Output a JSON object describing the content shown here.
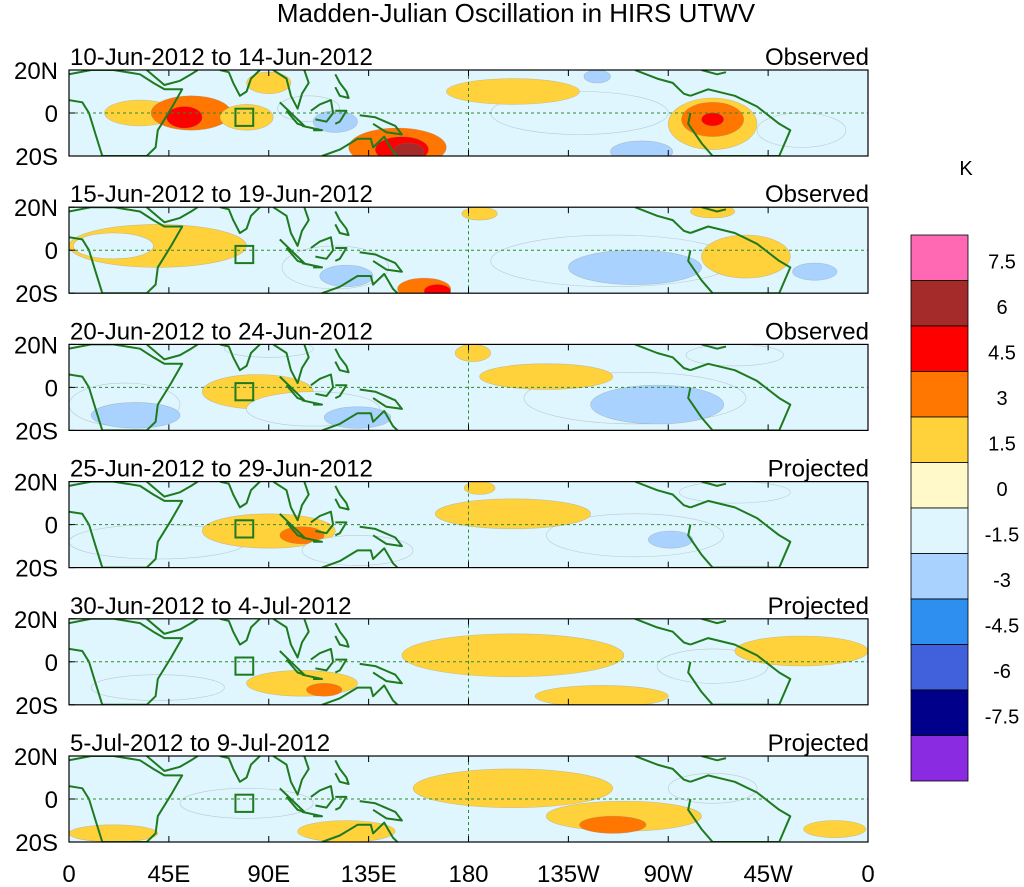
{
  "chart_data": {
    "type": "heatmap",
    "title": "Madden-Julian Oscillation in HIRS UTWV",
    "xlabel": "",
    "ylabel": "",
    "x_ticks": [
      "0",
      "45E",
      "90E",
      "135E",
      "180",
      "135W",
      "90W",
      "45W",
      "0"
    ],
    "x_tick_values": [
      0,
      45,
      90,
      135,
      180,
      225,
      270,
      315,
      360
    ],
    "y_ticks": [
      "20N",
      "0",
      "20S"
    ],
    "y_tick_values": [
      20,
      0,
      -20
    ],
    "xlim": [
      0,
      360
    ],
    "ylim": [
      -20,
      20
    ],
    "colorbar": {
      "unit": "K",
      "levels": [
        "7.5",
        "6",
        "4.5",
        "3",
        "1.5",
        "0",
        "-1.5",
        "-3",
        "-4.5",
        "-6",
        "-7.5"
      ],
      "level_values": [
        7.5,
        6,
        4.5,
        3,
        1.5,
        0,
        -1.5,
        -3,
        -4.5,
        -6,
        -7.5
      ],
      "colors": [
        "#ff69b4",
        "#a52a2a",
        "#ff0000",
        "#ff7700",
        "#ffd23c",
        "#fff8c8",
        "#dff6ff",
        "#aad2ff",
        "#2e8ff0",
        "#4060dc",
        "#00008b",
        "#8a2be2"
      ]
    },
    "panels": [
      {
        "period": "10-Jun-2012 to 14-Jun-2012",
        "status": "Observed",
        "anomalies": [
          {
            "lon": 32,
            "lat": 0,
            "rlon": 16,
            "rlat": 6,
            "value": 1.5
          },
          {
            "lon": 55,
            "lat": 0,
            "rlon": 18,
            "rlat": 8,
            "value": 3
          },
          {
            "lon": 52,
            "lat": -2,
            "rlon": 8,
            "rlat": 5,
            "value": 4.5
          },
          {
            "lon": 80,
            "lat": -2,
            "rlon": 12,
            "rlat": 6,
            "value": 1.5
          },
          {
            "lon": 108,
            "lat": 2,
            "rlon": 14,
            "rlat": 6,
            "value": -1.5
          },
          {
            "lon": 120,
            "lat": -4,
            "rlon": 10,
            "rlat": 5,
            "value": -3
          },
          {
            "lon": 148,
            "lat": -16,
            "rlon": 22,
            "rlat": 9,
            "value": 3
          },
          {
            "lon": 150,
            "lat": -17,
            "rlon": 12,
            "rlat": 6,
            "value": 4.5
          },
          {
            "lon": 153,
            "lat": -18,
            "rlon": 7,
            "rlat": 4,
            "value": 6
          },
          {
            "lon": 90,
            "lat": 14,
            "rlon": 10,
            "rlat": 5,
            "value": 1.5
          },
          {
            "lon": 230,
            "lat": 0,
            "rlon": 40,
            "rlat": 10,
            "value": -1.5
          },
          {
            "lon": 258,
            "lat": -18,
            "rlon": 14,
            "rlat": 5,
            "value": -3
          },
          {
            "lon": 290,
            "lat": -5,
            "rlon": 20,
            "rlat": 12,
            "value": 1.5
          },
          {
            "lon": 290,
            "lat": -3,
            "rlon": 14,
            "rlat": 8,
            "value": 3
          },
          {
            "lon": 290,
            "lat": -3,
            "rlon": 5,
            "rlat": 3,
            "value": 4.5
          },
          {
            "lon": 238,
            "lat": 17,
            "rlon": 6,
            "rlat": 3,
            "value": -3
          },
          {
            "lon": 200,
            "lat": 10,
            "rlon": 30,
            "rlat": 6,
            "value": 1.5
          },
          {
            "lon": 330,
            "lat": -8,
            "rlon": 20,
            "rlat": 8,
            "value": -1.5
          }
        ]
      },
      {
        "period": "15-Jun-2012 to 19-Jun-2012",
        "status": "Observed",
        "anomalies": [
          {
            "lon": 40,
            "lat": 2,
            "rlon": 40,
            "rlat": 10,
            "value": 1.5
          },
          {
            "lon": 20,
            "lat": 2,
            "rlon": 18,
            "rlat": 6,
            "value": -1.5
          },
          {
            "lon": 120,
            "lat": -8,
            "rlon": 24,
            "rlat": 10,
            "value": -1.5
          },
          {
            "lon": 125,
            "lat": -12,
            "rlon": 12,
            "rlat": 5,
            "value": -3
          },
          {
            "lon": 160,
            "lat": -18,
            "rlon": 12,
            "rlat": 5,
            "value": 3
          },
          {
            "lon": 166,
            "lat": -19,
            "rlon": 6,
            "rlat": 3,
            "value": 4.5
          },
          {
            "lon": 185,
            "lat": 17,
            "rlon": 8,
            "rlat": 3,
            "value": 1.5
          },
          {
            "lon": 245,
            "lat": -5,
            "rlon": 55,
            "rlat": 12,
            "value": -1.5
          },
          {
            "lon": 255,
            "lat": -8,
            "rlon": 30,
            "rlat": 8,
            "value": -3
          },
          {
            "lon": 305,
            "lat": -3,
            "rlon": 20,
            "rlat": 10,
            "value": 1.5
          },
          {
            "lon": 336,
            "lat": -10,
            "rlon": 10,
            "rlat": 4,
            "value": -3
          },
          {
            "lon": 290,
            "lat": 18,
            "rlon": 10,
            "rlat": 3,
            "value": 1.5
          }
        ]
      },
      {
        "period": "20-Jun-2012 to 24-Jun-2012",
        "status": "Observed",
        "anomalies": [
          {
            "lon": 25,
            "lat": -8,
            "rlon": 25,
            "rlat": 10,
            "value": -1.5
          },
          {
            "lon": 30,
            "lat": -13,
            "rlon": 20,
            "rlat": 6,
            "value": -3
          },
          {
            "lon": 85,
            "lat": -2,
            "rlon": 25,
            "rlat": 8,
            "value": 1.5
          },
          {
            "lon": 90,
            "lat": 18,
            "rlon": 20,
            "rlat": 4,
            "value": -1.5
          },
          {
            "lon": 110,
            "lat": -10,
            "rlon": 30,
            "rlat": 8,
            "value": -1.5
          },
          {
            "lon": 130,
            "lat": -14,
            "rlon": 15,
            "rlat": 5,
            "value": -3
          },
          {
            "lon": 182,
            "lat": 16,
            "rlon": 8,
            "rlat": 4,
            "value": 1.5
          },
          {
            "lon": 255,
            "lat": -5,
            "rlon": 50,
            "rlat": 12,
            "value": -1.5
          },
          {
            "lon": 265,
            "lat": -8,
            "rlon": 30,
            "rlat": 9,
            "value": -3
          },
          {
            "lon": 300,
            "lat": 15,
            "rlon": 22,
            "rlat": 5,
            "value": -1.5
          },
          {
            "lon": 215,
            "lat": 5,
            "rlon": 30,
            "rlat": 6,
            "value": 1.5
          }
        ]
      },
      {
        "period": "25-Jun-2012 to 29-Jun-2012",
        "status": "Projected",
        "anomalies": [
          {
            "lon": 40,
            "lat": -8,
            "rlon": 40,
            "rlat": 8,
            "value": -1.5
          },
          {
            "lon": 90,
            "lat": -3,
            "rlon": 30,
            "rlat": 8,
            "value": 1.5
          },
          {
            "lon": 105,
            "lat": -5,
            "rlon": 10,
            "rlat": 4,
            "value": 3
          },
          {
            "lon": 130,
            "lat": -12,
            "rlon": 25,
            "rlat": 7,
            "value": -1.5
          },
          {
            "lon": 185,
            "lat": 17,
            "rlon": 7,
            "rlat": 3,
            "value": 1.5
          },
          {
            "lon": 255,
            "lat": -5,
            "rlon": 40,
            "rlat": 10,
            "value": -1.5
          },
          {
            "lon": 271,
            "lat": -7,
            "rlon": 10,
            "rlat": 4,
            "value": -3
          },
          {
            "lon": 300,
            "lat": 15,
            "rlon": 25,
            "rlat": 5,
            "value": -1.5
          },
          {
            "lon": 200,
            "lat": 5,
            "rlon": 35,
            "rlat": 7,
            "value": 1.5
          }
        ]
      },
      {
        "period": "30-Jun-2012 to 4-Jul-2012",
        "status": "Projected",
        "anomalies": [
          {
            "lon": 105,
            "lat": -10,
            "rlon": 25,
            "rlat": 6,
            "value": 1.5
          },
          {
            "lon": 115,
            "lat": -13,
            "rlon": 8,
            "rlat": 3,
            "value": 3
          },
          {
            "lon": 240,
            "lat": -16,
            "rlon": 30,
            "rlat": 5,
            "value": 1.5
          },
          {
            "lon": 200,
            "lat": 3,
            "rlon": 50,
            "rlat": 10,
            "value": 1.5
          },
          {
            "lon": 290,
            "lat": -2,
            "rlon": 25,
            "rlat": 8,
            "value": -1.5
          },
          {
            "lon": 40,
            "lat": -12,
            "rlon": 30,
            "rlat": 6,
            "value": -1.5
          },
          {
            "lon": 330,
            "lat": 5,
            "rlon": 30,
            "rlat": 7,
            "value": 1.5
          }
        ]
      },
      {
        "period": "5-Jul-2012 to 9-Jul-2012",
        "status": "Projected",
        "anomalies": [
          {
            "lon": 20,
            "lat": -16,
            "rlon": 20,
            "rlat": 4,
            "value": 1.5
          },
          {
            "lon": 80,
            "lat": -2,
            "rlon": 30,
            "rlat": 7,
            "value": -1.5
          },
          {
            "lon": 125,
            "lat": -15,
            "rlon": 22,
            "rlat": 5,
            "value": 1.5
          },
          {
            "lon": 250,
            "lat": -8,
            "rlon": 35,
            "rlat": 7,
            "value": 1.5
          },
          {
            "lon": 245,
            "lat": -12,
            "rlon": 15,
            "rlat": 4,
            "value": 3
          },
          {
            "lon": 200,
            "lat": 5,
            "rlon": 45,
            "rlat": 9,
            "value": 1.5
          },
          {
            "lon": 345,
            "lat": -14,
            "rlon": 14,
            "rlat": 4,
            "value": 1.5
          },
          {
            "lon": 290,
            "lat": 5,
            "rlon": 20,
            "rlat": 7,
            "value": -1.5
          }
        ]
      }
    ]
  }
}
